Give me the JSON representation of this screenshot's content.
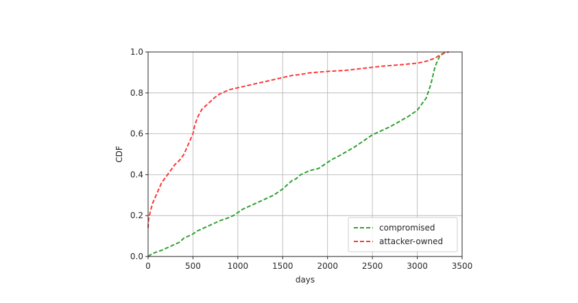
{
  "chart_data": {
    "type": "line",
    "title": "",
    "xlabel": "days",
    "ylabel": "CDF",
    "xlim": [
      0,
      3500
    ],
    "ylim": [
      0.0,
      1.0
    ],
    "xticks": [
      0,
      500,
      1000,
      1500,
      2000,
      2500,
      3000,
      3500
    ],
    "yticks": [
      0.0,
      0.2,
      0.4,
      0.6,
      0.8,
      1.0
    ],
    "xtick_labels": [
      "0",
      "500",
      "1000",
      "1500",
      "2000",
      "2500",
      "3000",
      "3500"
    ],
    "ytick_labels": [
      "0.0",
      "0.2",
      "0.4",
      "0.6",
      "0.8",
      "1.0"
    ],
    "grid": true,
    "legend_position": "lower-right",
    "series": [
      {
        "name": "compromised",
        "color": "#2ca02c",
        "style": "dashed",
        "x": [
          0,
          50,
          150,
          250,
          350,
          400,
          450,
          500,
          550,
          600,
          700,
          800,
          900,
          950,
          1000,
          1050,
          1100,
          1200,
          1300,
          1400,
          1500,
          1550,
          1600,
          1650,
          1700,
          1800,
          1900,
          2000,
          2050,
          2100,
          2200,
          2300,
          2400,
          2500,
          2600,
          2700,
          2800,
          2900,
          3000,
          3050,
          3100,
          3150,
          3200,
          3250,
          3300,
          3350
        ],
        "y": [
          0.0,
          0.015,
          0.03,
          0.05,
          0.07,
          0.09,
          0.1,
          0.11,
          0.125,
          0.135,
          0.155,
          0.175,
          0.19,
          0.2,
          0.215,
          0.23,
          0.24,
          0.26,
          0.28,
          0.3,
          0.33,
          0.35,
          0.37,
          0.38,
          0.4,
          0.42,
          0.43,
          0.46,
          0.475,
          0.485,
          0.51,
          0.535,
          0.565,
          0.595,
          0.615,
          0.635,
          0.66,
          0.685,
          0.715,
          0.745,
          0.775,
          0.84,
          0.93,
          0.98,
          0.995,
          1.0
        ]
      },
      {
        "name": "attacker-owned",
        "color": "#ff3333",
        "style": "dashed",
        "x": [
          0,
          5,
          25,
          50,
          100,
          150,
          200,
          250,
          300,
          350,
          400,
          450,
          500,
          520,
          550,
          600,
          650,
          700,
          750,
          800,
          900,
          1000,
          1100,
          1200,
          1300,
          1400,
          1500,
          1600,
          1700,
          1800,
          2000,
          2200,
          2400,
          2600,
          2800,
          3000,
          3100,
          3200,
          3250,
          3300,
          3350
        ],
        "y": [
          0.14,
          0.18,
          0.22,
          0.26,
          0.31,
          0.36,
          0.39,
          0.42,
          0.45,
          0.47,
          0.5,
          0.55,
          0.6,
          0.64,
          0.68,
          0.72,
          0.74,
          0.76,
          0.78,
          0.795,
          0.815,
          0.825,
          0.835,
          0.845,
          0.855,
          0.865,
          0.875,
          0.885,
          0.89,
          0.898,
          0.905,
          0.91,
          0.92,
          0.93,
          0.937,
          0.945,
          0.955,
          0.97,
          0.985,
          0.995,
          1.0
        ]
      }
    ]
  }
}
